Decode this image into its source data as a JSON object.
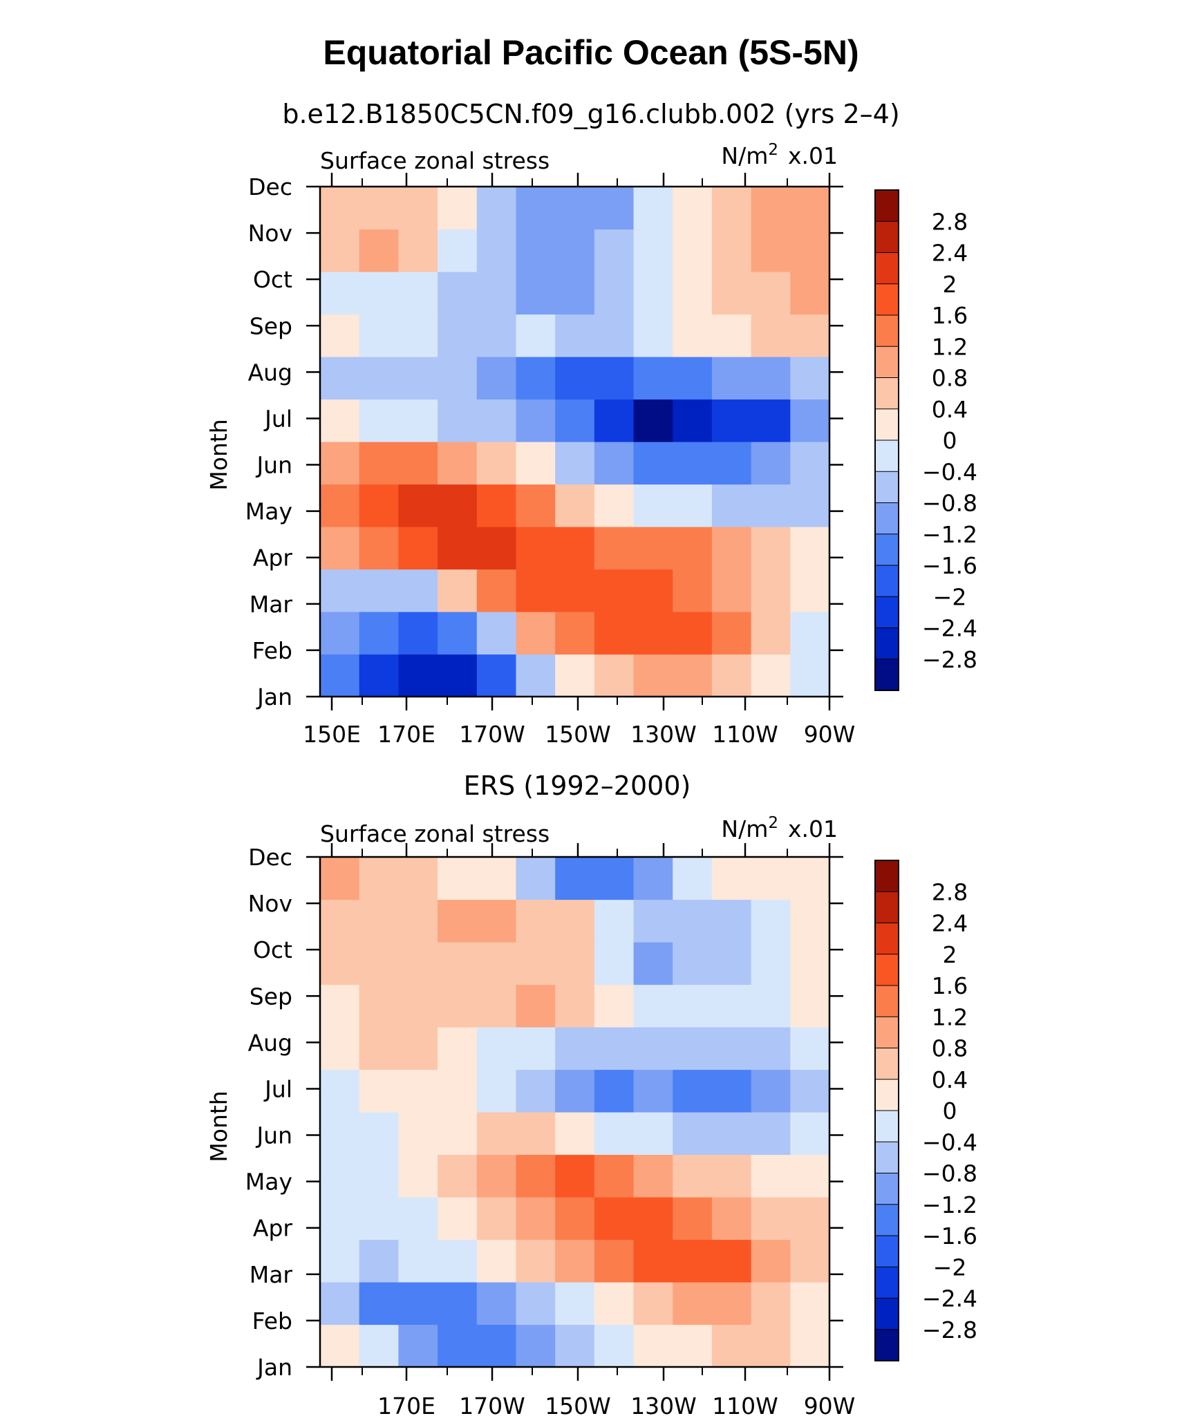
{
  "chart_data": {
    "type": "heatmap",
    "title": "Equatorial Pacific Ocean (5S-5N)",
    "panels": [
      {
        "subtitle": "b.e12.B1850C5CN.f09_g16.clubb.002 (yrs 2–4)",
        "left_label": "Surface zonal stress",
        "right_label_unit": "N/m",
        "right_label_sup": "2",
        "right_label_scale": "x.01",
        "ylabel": "Month",
        "x_tick_labels": [
          "150E",
          "170E",
          "170W",
          "150W",
          "130W",
          "110W",
          "90W"
        ],
        "y_tick_labels": [
          "Jan",
          "Feb",
          "Mar",
          "Apr",
          "May",
          "Jun",
          "Jul",
          "Aug",
          "Sep",
          "Oct",
          "Nov",
          "Dec"
        ],
        "xlim_deg_east": [
          150,
          270
        ],
        "months": [
          1,
          2,
          3,
          4,
          5,
          6,
          7,
          8,
          9,
          10,
          11,
          12
        ],
        "lon_deg_east": [
          150,
          160,
          170,
          180,
          190,
          200,
          210,
          220,
          230,
          240,
          250,
          260,
          270
        ],
        "values": [
          [
            -1.6,
            -2.4,
            -2.8,
            -2.6,
            -1.8,
            -0.8,
            0.2,
            0.6,
            0.8,
            0.8,
            0.6,
            0.2,
            -0.1
          ],
          [
            -1.2,
            -1.6,
            -2.0,
            -1.6,
            -0.6,
            0.8,
            1.4,
            1.6,
            1.8,
            1.6,
            1.2,
            0.4,
            -0.1
          ],
          [
            -0.6,
            -0.8,
            -0.6,
            0.4,
            1.2,
            1.6,
            1.6,
            1.6,
            1.6,
            1.4,
            1.0,
            0.4,
            0.0
          ],
          [
            0.8,
            1.2,
            1.6,
            2.0,
            2.0,
            1.6,
            1.6,
            1.4,
            1.4,
            1.2,
            1.0,
            0.6,
            0.0
          ],
          [
            1.2,
            1.6,
            2.0,
            2.0,
            1.6,
            1.2,
            0.6,
            0.2,
            -0.2,
            -0.4,
            -0.6,
            -0.8,
            -0.8
          ],
          [
            0.8,
            1.2,
            1.2,
            1.0,
            0.6,
            0.2,
            -0.6,
            -1.2,
            -1.6,
            -1.6,
            -1.4,
            -1.2,
            -0.8
          ],
          [
            0.2,
            -0.2,
            -0.4,
            -0.6,
            -0.8,
            -1.2,
            -1.6,
            -2.4,
            -3.0,
            -2.8,
            -2.4,
            -2.4,
            -1.2
          ],
          [
            -0.6,
            -0.8,
            -0.6,
            -0.8,
            -1.2,
            -1.6,
            -1.8,
            -2.0,
            -1.6,
            -1.6,
            -1.2,
            -1.0,
            -0.6
          ],
          [
            0.2,
            -0.2,
            -0.4,
            -0.6,
            -0.6,
            -0.4,
            -0.6,
            -0.6,
            -0.2,
            0.2,
            0.2,
            0.4,
            0.6
          ],
          [
            -0.4,
            -0.2,
            -0.4,
            -0.6,
            -0.8,
            -1.2,
            -1.2,
            -0.8,
            -0.4,
            0.0,
            0.4,
            0.6,
            0.8
          ],
          [
            0.4,
            0.8,
            0.4,
            -0.2,
            -0.6,
            -1.2,
            -1.2,
            -0.8,
            -0.4,
            0.2,
            0.6,
            0.8,
            1.0
          ],
          [
            0.4,
            0.6,
            0.4,
            0.0,
            -0.8,
            -1.2,
            -1.2,
            -1.0,
            -0.4,
            0.2,
            0.6,
            0.8,
            1.0
          ]
        ]
      },
      {
        "subtitle": "ERS (1992–2000)",
        "left_label": "Surface zonal stress",
        "right_label_unit": "N/m",
        "right_label_sup": "2",
        "right_label_scale": "x.01",
        "ylabel": "Month",
        "x_tick_labels": [
          "170E",
          "170W",
          "150W",
          "130W",
          "110W",
          "90W"
        ],
        "y_tick_labels": [
          "Jan",
          "Feb",
          "Mar",
          "Apr",
          "May",
          "Jun",
          "Jul",
          "Aug",
          "Sep",
          "Oct",
          "Nov",
          "Dec"
        ],
        "xlim_deg_east": [
          150,
          270
        ],
        "months": [
          1,
          2,
          3,
          4,
          5,
          6,
          7,
          8,
          9,
          10,
          11,
          12
        ],
        "lon_deg_east": [
          150,
          160,
          170,
          180,
          190,
          200,
          210,
          220,
          230,
          240,
          250,
          260,
          270
        ],
        "values": [
          [
            0.2,
            -0.4,
            -1.2,
            -1.6,
            -1.6,
            -1.2,
            -0.8,
            -0.4,
            0.0,
            0.2,
            0.4,
            0.4,
            0.2
          ],
          [
            -0.6,
            -1.4,
            -1.6,
            -1.4,
            -1.0,
            -0.6,
            -0.2,
            0.2,
            0.6,
            0.8,
            0.8,
            0.4,
            0.2
          ],
          [
            -0.4,
            -0.6,
            -0.4,
            -0.2,
            0.0,
            0.4,
            0.8,
            1.2,
            1.6,
            1.8,
            1.6,
            0.8,
            0.4
          ],
          [
            -0.2,
            -0.2,
            -0.2,
            0.0,
            0.4,
            0.8,
            1.2,
            1.6,
            1.6,
            1.2,
            0.8,
            0.6,
            0.4
          ],
          [
            -0.2,
            -0.2,
            0.0,
            0.4,
            0.8,
            1.2,
            1.6,
            1.2,
            0.8,
            0.6,
            0.4,
            0.2,
            0.0
          ],
          [
            -0.4,
            -0.2,
            0.2,
            0.2,
            0.4,
            0.4,
            0.2,
            -0.2,
            -0.4,
            -0.6,
            -0.8,
            -0.8,
            -0.4
          ],
          [
            -0.2,
            0.0,
            0.2,
            0.0,
            -0.2,
            -0.6,
            -1.2,
            -1.6,
            -1.2,
            -1.6,
            -1.6,
            -1.2,
            -0.6
          ],
          [
            0.2,
            0.4,
            0.4,
            0.0,
            -0.2,
            -0.4,
            -0.6,
            -0.8,
            -0.6,
            -0.6,
            -0.8,
            -0.6,
            -0.4
          ],
          [
            0.2,
            0.4,
            0.4,
            0.4,
            0.6,
            0.8,
            0.4,
            0.0,
            -0.2,
            -0.4,
            -0.4,
            -0.2,
            0.0
          ],
          [
            0.4,
            0.4,
            0.4,
            0.6,
            0.6,
            0.4,
            0.4,
            -0.2,
            -1.0,
            -0.8,
            -0.6,
            -0.2,
            0.0
          ],
          [
            0.4,
            0.4,
            0.6,
            0.8,
            0.8,
            0.6,
            0.4,
            -0.2,
            -0.8,
            -0.8,
            -0.6,
            -0.2,
            0.0
          ],
          [
            0.8,
            0.6,
            0.4,
            0.2,
            0.0,
            -0.6,
            -1.4,
            -1.4,
            -1.0,
            -0.4,
            0.0,
            0.2,
            0.2
          ]
        ]
      }
    ],
    "colorbar": {
      "labels": [
        "2.8",
        "2.4",
        "2",
        "1.6",
        "1.2",
        "0.8",
        "0.4",
        "0",
        "−0.4",
        "−0.8",
        "−1.2",
        "−1.6",
        "−2",
        "−2.4",
        "−2.8"
      ],
      "levels": [
        -2.8,
        -2.4,
        -2.0,
        -1.6,
        -1.2,
        -0.8,
        -0.4,
        0.0,
        0.4,
        0.8,
        1.2,
        1.6,
        2.0,
        2.4,
        2.8
      ],
      "colors": [
        "#000d86",
        "#0022c0",
        "#0d3be0",
        "#2a5ef1",
        "#4a7ff6",
        "#7b9ff5",
        "#aec5f7",
        "#d6e7fb",
        "#fde8d9",
        "#fcc6aa",
        "#fca47e",
        "#fb7d4c",
        "#fa5623",
        "#e23813",
        "#bc2109",
        "#8a0d04"
      ]
    }
  }
}
